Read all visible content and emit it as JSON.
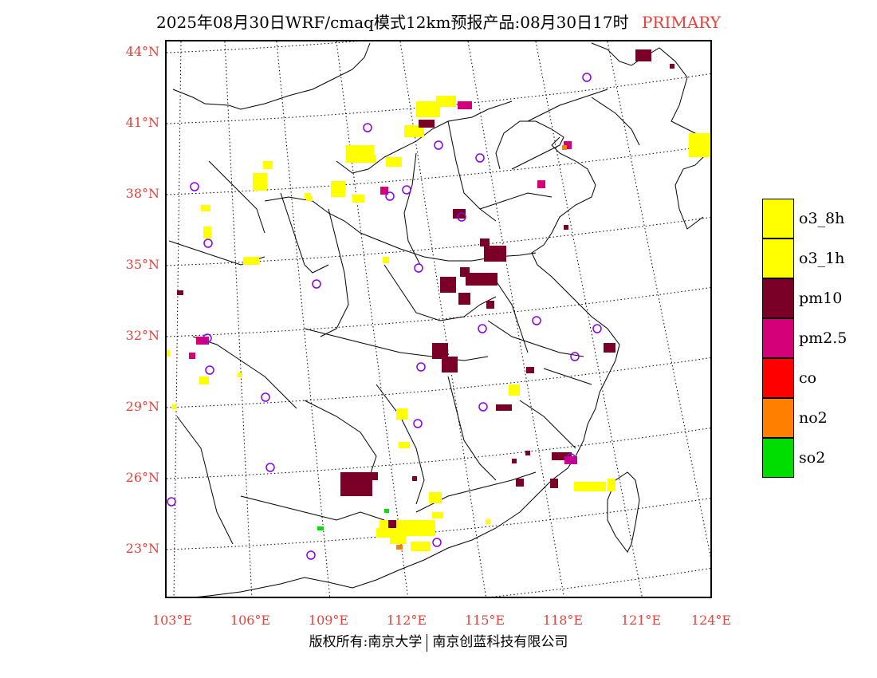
{
  "header": {
    "title": "2025年08月30日WRF/cmaq模式12km预报产品:08月30日17时",
    "subtitle": "PRIMARY"
  },
  "map": {
    "lat_labels": [
      "44°N",
      "41°N",
      "38°N",
      "35°N",
      "32°N",
      "29°N",
      "26°N",
      "23°N"
    ],
    "lon_labels": [
      "103°E",
      "106°E",
      "109°E",
      "112°E",
      "115°E",
      "118°E",
      "121°E",
      "124°E"
    ],
    "colors": {
      "o3_8h": "#ffff00",
      "o3_1h": "#ffff00",
      "pm10": "#7a0028",
      "pm2_5": "#d4007a",
      "co": "#ff0000",
      "no2": "#ff8000",
      "so2": "#00dd00",
      "station": "#8a00e6",
      "boundary": "#000000",
      "title_accent": "#e8403a"
    }
  },
  "legend": [
    {
      "label": "o3_8h",
      "color": "#ffff00"
    },
    {
      "label": "o3_1h",
      "color": "#ffff00"
    },
    {
      "label": "pm10",
      "color": "#7a0028"
    },
    {
      "label": "pm2.5",
      "color": "#d4007a"
    },
    {
      "label": "co",
      "color": "#ff0000"
    },
    {
      "label": "no2",
      "color": "#ff8000"
    },
    {
      "label": "so2",
      "color": "#00dd00"
    }
  ],
  "footer": {
    "copyright_left": "版权所有:南京大学",
    "copyright_right": "南京创蓝科技有限公司"
  }
}
